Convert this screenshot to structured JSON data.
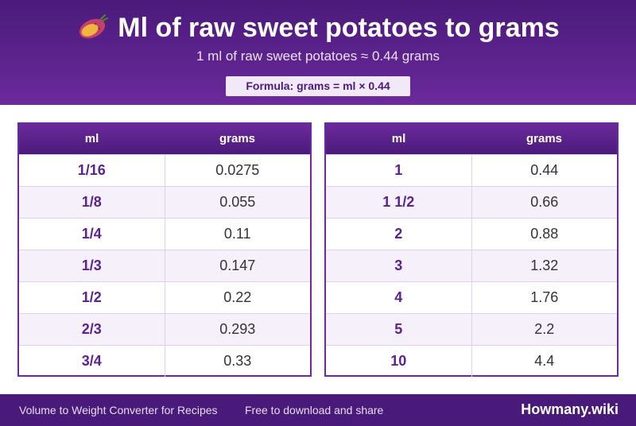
{
  "header": {
    "icon": "sweet-potato-icon",
    "title": "Ml of raw sweet potatoes to grams",
    "subtitle": "1 ml of raw sweet potatoes ≈ 0.44 grams",
    "formula": "Formula: grams = ml × 0.44"
  },
  "left_table": {
    "col1": "ml",
    "col2": "grams",
    "rows": [
      {
        "ml": "1/16",
        "grams": "0.0275"
      },
      {
        "ml": "1/8",
        "grams": "0.055"
      },
      {
        "ml": "1/4",
        "grams": "0.11"
      },
      {
        "ml": "1/3",
        "grams": "0.147"
      },
      {
        "ml": "1/2",
        "grams": "0.22"
      },
      {
        "ml": "2/3",
        "grams": "0.293"
      },
      {
        "ml": "3/4",
        "grams": "0.33"
      }
    ]
  },
  "right_table": {
    "col1": "ml",
    "col2": "grams",
    "rows": [
      {
        "ml": "1",
        "grams": "0.44"
      },
      {
        "ml": "1 1/2",
        "grams": "0.66"
      },
      {
        "ml": "2",
        "grams": "0.88"
      },
      {
        "ml": "3",
        "grams": "1.32"
      },
      {
        "ml": "4",
        "grams": "1.76"
      },
      {
        "ml": "5",
        "grams": "2.2"
      },
      {
        "ml": "10",
        "grams": "4.4"
      }
    ]
  },
  "footer": {
    "left_text": "Volume to Weight Converter for Recipes",
    "middle_text": "Free to download and share",
    "brand": "Howmany.wiki"
  },
  "colors": {
    "primary": "#4a1a7a",
    "accent": "#6b2a9c",
    "row_alt": "#f5f0fa"
  }
}
